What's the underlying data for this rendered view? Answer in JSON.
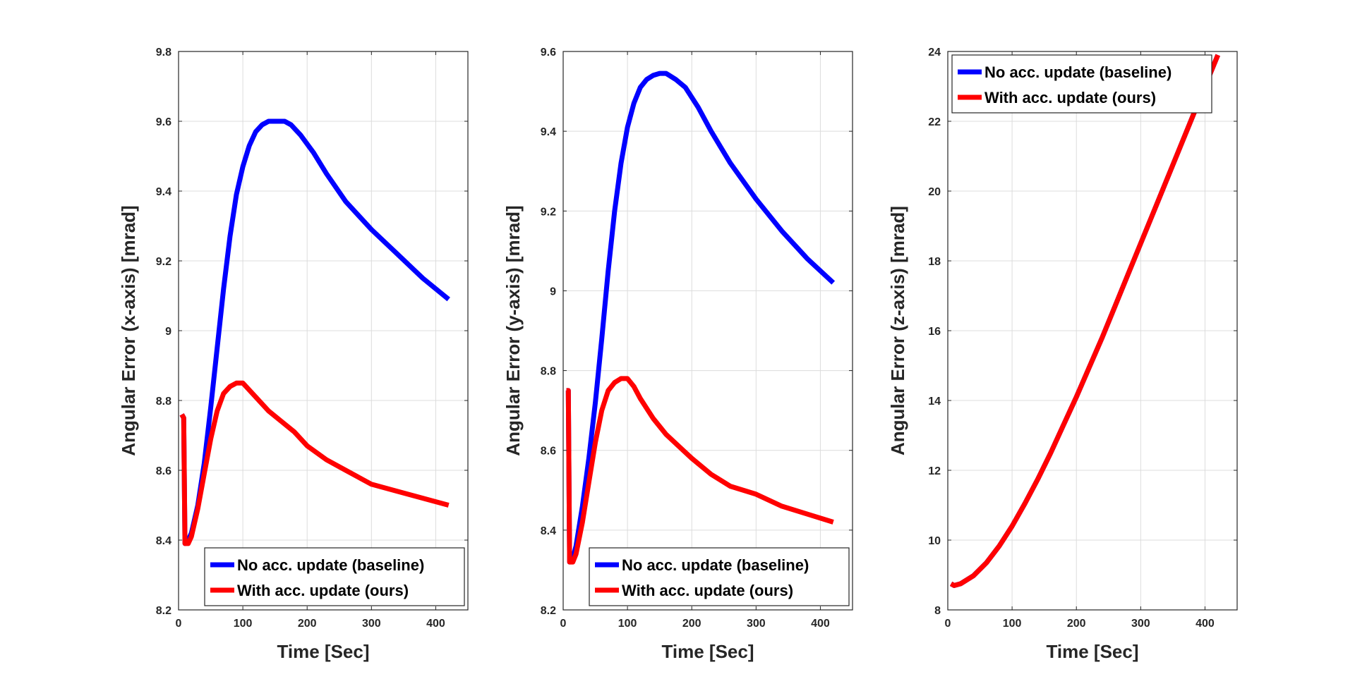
{
  "chart_data": [
    {
      "type": "line",
      "xlabel": "Time [Sec]",
      "ylabel": "Angular Error (x-axis) [mrad]",
      "xlim": [
        0,
        450
      ],
      "ylim": [
        8.2,
        9.8
      ],
      "xticks": [
        0,
        100,
        200,
        300,
        400
      ],
      "xtick_labels": [
        "0",
        "100",
        "200",
        "300",
        "400"
      ],
      "yticks": [
        8.2,
        8.4,
        8.6,
        8.8,
        9.0,
        9.2,
        9.4,
        9.6,
        9.8
      ],
      "ytick_labels": [
        "8.2",
        "8.4",
        "8.6",
        "8.8",
        "9",
        "9.2",
        "9.4",
        "9.6",
        "9.8"
      ],
      "grid": true,
      "legend_position": "bottom-right",
      "series": [
        {
          "name": "No acc. update (baseline)",
          "color": "#0000ff",
          "x": [
            5,
            8,
            10,
            15,
            20,
            30,
            40,
            50,
            60,
            70,
            80,
            90,
            100,
            110,
            120,
            130,
            140,
            150,
            160,
            165,
            175,
            190,
            210,
            230,
            260,
            300,
            340,
            380,
            420
          ],
          "y": [
            8.76,
            8.75,
            8.39,
            8.4,
            8.42,
            8.5,
            8.62,
            8.78,
            8.95,
            9.12,
            9.27,
            9.39,
            9.47,
            9.53,
            9.57,
            9.59,
            9.6,
            9.6,
            9.6,
            9.6,
            9.59,
            9.56,
            9.51,
            9.45,
            9.37,
            9.29,
            9.22,
            9.15,
            9.09
          ]
        },
        {
          "name": "With acc. update (ours)",
          "color": "#ff0000",
          "x": [
            5,
            8,
            10,
            15,
            20,
            30,
            40,
            50,
            60,
            70,
            80,
            90,
            95,
            100,
            110,
            120,
            140,
            160,
            180,
            200,
            230,
            260,
            300,
            340,
            380,
            420
          ],
          "y": [
            8.76,
            8.75,
            8.39,
            8.39,
            8.41,
            8.49,
            8.59,
            8.69,
            8.77,
            8.82,
            8.84,
            8.85,
            8.85,
            8.85,
            8.83,
            8.81,
            8.77,
            8.74,
            8.71,
            8.67,
            8.63,
            8.6,
            8.56,
            8.54,
            8.52,
            8.5
          ]
        }
      ]
    },
    {
      "type": "line",
      "xlabel": "Time [Sec]",
      "ylabel": "Angular Error (y-axis) [mrad]",
      "xlim": [
        0,
        450
      ],
      "ylim": [
        8.2,
        9.6
      ],
      "xticks": [
        0,
        100,
        200,
        300,
        400
      ],
      "xtick_labels": [
        "0",
        "100",
        "200",
        "300",
        "400"
      ],
      "yticks": [
        8.2,
        8.4,
        8.6,
        8.8,
        9.0,
        9.2,
        9.4,
        9.6
      ],
      "ytick_labels": [
        "8.2",
        "8.4",
        "8.6",
        "8.8",
        "9",
        "9.2",
        "9.4",
        "9.6"
      ],
      "grid": true,
      "legend_position": "bottom-right",
      "series": [
        {
          "name": "No acc. update (baseline)",
          "color": "#0000ff",
          "x": [
            5,
            8,
            10,
            15,
            20,
            30,
            40,
            50,
            60,
            70,
            80,
            90,
            100,
            110,
            120,
            130,
            140,
            150,
            160,
            165,
            175,
            190,
            210,
            230,
            260,
            300,
            340,
            380,
            420
          ],
          "y": [
            8.75,
            8.75,
            8.32,
            8.33,
            8.36,
            8.46,
            8.58,
            8.72,
            8.88,
            9.05,
            9.2,
            9.32,
            9.41,
            9.47,
            9.51,
            9.53,
            9.54,
            9.545,
            9.545,
            9.54,
            9.53,
            9.51,
            9.46,
            9.4,
            9.32,
            9.23,
            9.15,
            9.08,
            9.02
          ]
        },
        {
          "name": "With acc. update (ours)",
          "color": "#ff0000",
          "x": [
            5,
            8,
            10,
            15,
            20,
            30,
            40,
            50,
            60,
            70,
            80,
            90,
            95,
            100,
            110,
            120,
            140,
            160,
            180,
            200,
            230,
            260,
            300,
            340,
            380,
            420
          ],
          "y": [
            8.75,
            8.75,
            8.32,
            8.32,
            8.34,
            8.42,
            8.52,
            8.62,
            8.7,
            8.75,
            8.77,
            8.78,
            8.78,
            8.78,
            8.76,
            8.73,
            8.68,
            8.64,
            8.61,
            8.58,
            8.54,
            8.51,
            8.49,
            8.46,
            8.44,
            8.42
          ]
        }
      ]
    },
    {
      "type": "line",
      "xlabel": "Time [Sec]",
      "ylabel": "Angular Error (z-axis) [mrad]",
      "xlim": [
        0,
        450
      ],
      "ylim": [
        8,
        24
      ],
      "xticks": [
        0,
        100,
        200,
        300,
        400
      ],
      "xtick_labels": [
        "0",
        "100",
        "200",
        "300",
        "400"
      ],
      "yticks": [
        8,
        10,
        12,
        14,
        16,
        18,
        20,
        22,
        24
      ],
      "ytick_labels": [
        "8",
        "10",
        "12",
        "14",
        "16",
        "18",
        "20",
        "22",
        "24"
      ],
      "grid": true,
      "legend_position": "top-left",
      "series": [
        {
          "name": "No acc. update (baseline)",
          "color": "#0000ff",
          "x": [
            5,
            10,
            20,
            40,
            60,
            80,
            100,
            120,
            140,
            160,
            180,
            200,
            220,
            240,
            260,
            280,
            300,
            320,
            340,
            360,
            380,
            400,
            420
          ],
          "y": [
            8.75,
            8.7,
            8.75,
            8.98,
            9.35,
            9.83,
            10.4,
            11.05,
            11.75,
            12.5,
            13.3,
            14.1,
            14.95,
            15.8,
            16.7,
            17.6,
            18.5,
            19.4,
            20.3,
            21.2,
            22.1,
            23.0,
            23.9
          ]
        },
        {
          "name": "With acc. update (ours)",
          "color": "#ff0000",
          "x": [
            5,
            10,
            20,
            40,
            60,
            80,
            100,
            120,
            140,
            160,
            180,
            200,
            220,
            240,
            260,
            280,
            300,
            320,
            340,
            360,
            380,
            400,
            420
          ],
          "y": [
            8.75,
            8.7,
            8.75,
            8.98,
            9.35,
            9.83,
            10.4,
            11.05,
            11.75,
            12.5,
            13.3,
            14.1,
            14.95,
            15.8,
            16.7,
            17.6,
            18.5,
            19.4,
            20.3,
            21.2,
            22.1,
            23.0,
            23.9
          ]
        }
      ]
    }
  ]
}
